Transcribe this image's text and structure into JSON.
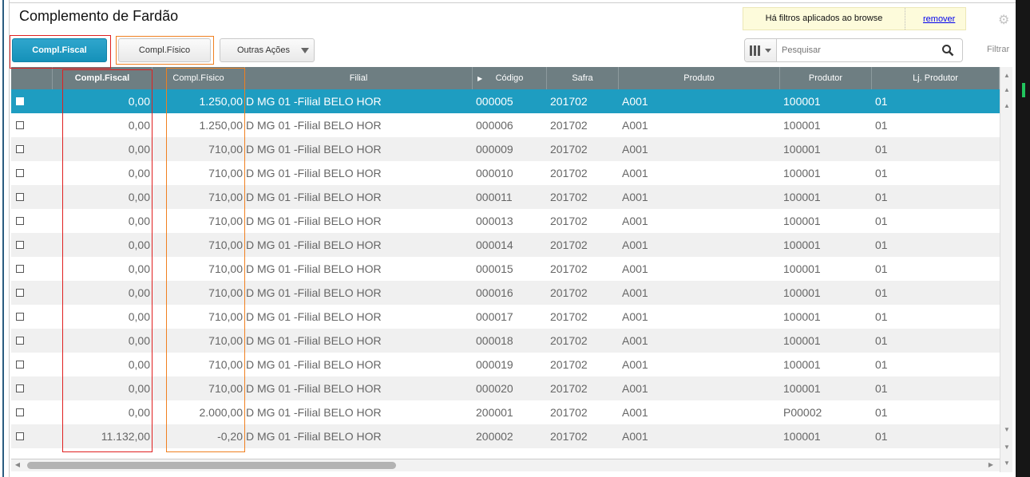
{
  "title": "Complemento de Fardão",
  "toolbar": {
    "compl_fiscal": "Compl.Fiscal",
    "compl_fisico": "Compl.Físico",
    "outras_acoes": "Outras Ações"
  },
  "filter_notice": {
    "text": "Há filtros aplicados ao browse",
    "remove": "remover"
  },
  "search": {
    "placeholder": "Pesquisar",
    "filter_label": "Filtrar"
  },
  "colors": {
    "accent": "#1e9dc1",
    "header": "#6e7e82",
    "highlight_red": "#e02020",
    "highlight_orange": "#f08020"
  },
  "columns": [
    "",
    "Compl.Fiscal",
    "Compl.Físico",
    "Filial",
    "Código",
    "Safra",
    "Produto",
    "Produtor",
    "Lj. Produtor"
  ],
  "rows": [
    [
      "0,00",
      "1.250,00",
      "D MG 01 -Filial BELO HOR",
      "000005",
      "201702",
      "A001",
      "100001",
      "01"
    ],
    [
      "0,00",
      "1.250,00",
      "D MG 01 -Filial BELO HOR",
      "000006",
      "201702",
      "A001",
      "100001",
      "01"
    ],
    [
      "0,00",
      "710,00",
      "D MG 01 -Filial BELO HOR",
      "000009",
      "201702",
      "A001",
      "100001",
      "01"
    ],
    [
      "0,00",
      "710,00",
      "D MG 01 -Filial BELO HOR",
      "000010",
      "201702",
      "A001",
      "100001",
      "01"
    ],
    [
      "0,00",
      "710,00",
      "D MG 01 -Filial BELO HOR",
      "000011",
      "201702",
      "A001",
      "100001",
      "01"
    ],
    [
      "0,00",
      "710,00",
      "D MG 01 -Filial BELO HOR",
      "000013",
      "201702",
      "A001",
      "100001",
      "01"
    ],
    [
      "0,00",
      "710,00",
      "D MG 01 -Filial BELO HOR",
      "000014",
      "201702",
      "A001",
      "100001",
      "01"
    ],
    [
      "0,00",
      "710,00",
      "D MG 01 -Filial BELO HOR",
      "000015",
      "201702",
      "A001",
      "100001",
      "01"
    ],
    [
      "0,00",
      "710,00",
      "D MG 01 -Filial BELO HOR",
      "000016",
      "201702",
      "A001",
      "100001",
      "01"
    ],
    [
      "0,00",
      "710,00",
      "D MG 01 -Filial BELO HOR",
      "000017",
      "201702",
      "A001",
      "100001",
      "01"
    ],
    [
      "0,00",
      "710,00",
      "D MG 01 -Filial BELO HOR",
      "000018",
      "201702",
      "A001",
      "100001",
      "01"
    ],
    [
      "0,00",
      "710,00",
      "D MG 01 -Filial BELO HOR",
      "000019",
      "201702",
      "A001",
      "100001",
      "01"
    ],
    [
      "0,00",
      "710,00",
      "D MG 01 -Filial BELO HOR",
      "000020",
      "201702",
      "A001",
      "100001",
      "01"
    ],
    [
      "0,00",
      "2.000,00",
      "D MG 01 -Filial BELO HOR",
      "200001",
      "201702",
      "A001",
      "P00002",
      "01"
    ],
    [
      "11.132,00",
      "-0,20",
      "D MG 01 -Filial BELO HOR",
      "200002",
      "201702",
      "A001",
      "100001",
      "01"
    ]
  ]
}
